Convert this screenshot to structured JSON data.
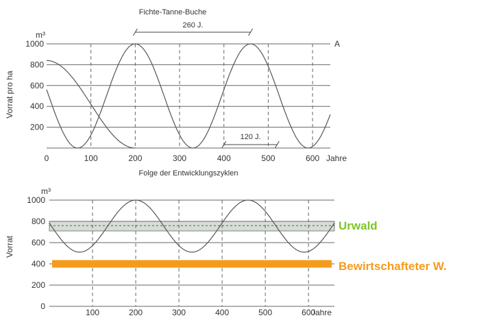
{
  "chart_data": [
    {
      "type": "line",
      "title": "Fichte-Tanne-Buche",
      "xlabel": "Folge der Entwicklungszyklen",
      "ylabel": "Vorrat pro ha",
      "yunit": "m³",
      "xunit": "Jahre",
      "xlim": [
        0,
        640
      ],
      "ylim": [
        0,
        1000
      ],
      "xticks": [
        "0",
        "100",
        "200",
        "300",
        "400",
        "500",
        "600"
      ],
      "yticks": [
        "200",
        "400",
        "600",
        "800",
        "1000"
      ],
      "grid": true,
      "corner_label": "A",
      "annotations": [
        {
          "text": "260 J.",
          "x_from": 200,
          "x_to": 460,
          "y": 1000
        },
        {
          "text": "120 J.",
          "x_from": 400,
          "x_to": 520,
          "y": 30
        }
      ],
      "series": [
        {
          "x": [
            0,
            200,
            460,
            640
          ],
          "y": [
            840,
            0,
            0,
            0
          ],
          "shape": "cosine-decay"
        },
        {
          "x": [
            0,
            200,
            460,
            640
          ],
          "y": [
            0,
            1000,
            1000,
            840
          ],
          "shape": "cosine-cycle"
        }
      ]
    },
    {
      "type": "line",
      "xlabel": "",
      "ylabel": "Vorrat",
      "yunit": "m³",
      "xunit": "Jahre",
      "xlim": [
        0,
        660
      ],
      "ylim": [
        0,
        1000
      ],
      "xticks": [
        "100",
        "200",
        "300",
        "400",
        "500",
        "600"
      ],
      "yticks": [
        "0",
        "200",
        "400",
        "600",
        "800",
        "1000"
      ],
      "grid": true,
      "band": {
        "low": 710,
        "high": 800,
        "mid": 760,
        "name": "Urwald",
        "color": "#7ec42a"
      },
      "bar": {
        "value": 400,
        "x_from": 0,
        "x_to": 660,
        "name": "Bewirtschafteter W.",
        "color": "#f59b1c"
      },
      "series": [
        {
          "x": [
            0,
            70,
            200,
            330,
            460,
            590,
            660
          ],
          "y": [
            800,
            510,
            1000,
            510,
            1000,
            510,
            800
          ],
          "shape": "sine"
        }
      ]
    }
  ]
}
